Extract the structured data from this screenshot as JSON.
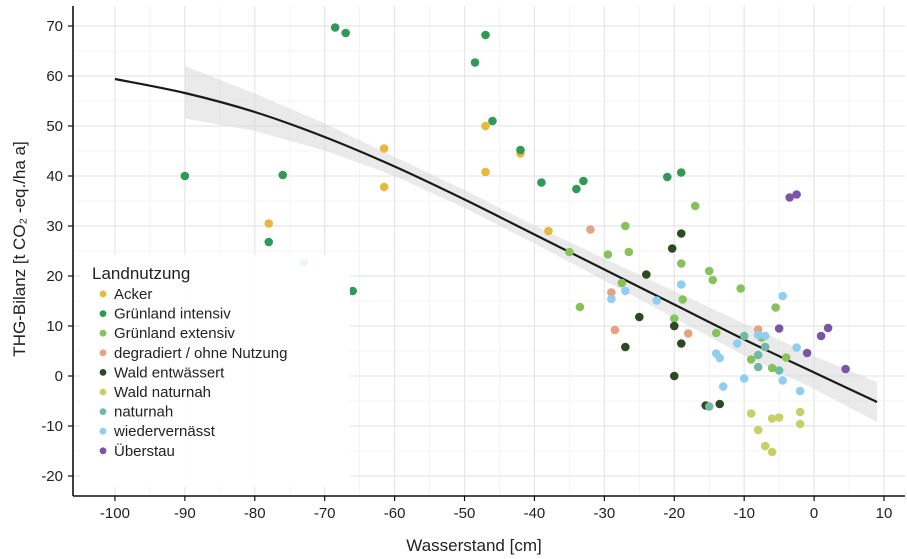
{
  "chart_data": {
    "type": "scatter",
    "xlabel": "Wasserstand [cm]",
    "ylabel": "THG-Bilanz [t CO₂ -eq./ha a]",
    "xlim": [
      -106,
      13
    ],
    "ylim": [
      -24,
      74
    ],
    "xticks": [
      -100,
      -90,
      -80,
      -70,
      -60,
      -50,
      -40,
      -30,
      -20,
      -10,
      0,
      10
    ],
    "yticks": [
      -20,
      -10,
      0,
      10,
      20,
      30,
      40,
      50,
      60,
      70
    ],
    "grid": true,
    "legend": {
      "title": "Landnutzung",
      "position": "bottom-left"
    },
    "series": [
      {
        "name": "Acker",
        "color": "#e8b83a",
        "points": [
          [
            -78,
            30.5
          ],
          [
            -61.5,
            45.5
          ],
          [
            -61.5,
            37.8
          ],
          [
            -47,
            50
          ],
          [
            -47,
            40.8
          ],
          [
            -42,
            44.5
          ],
          [
            -38,
            29
          ]
        ]
      },
      {
        "name": "Grünland intensiv",
        "color": "#2e9a56",
        "points": [
          [
            -90,
            40
          ],
          [
            -78,
            26.8
          ],
          [
            -76,
            40.2
          ],
          [
            -73,
            22.7
          ],
          [
            -68.5,
            69.7
          ],
          [
            -67,
            68.6
          ],
          [
            -66,
            17
          ],
          [
            -48.5,
            62.7
          ],
          [
            -47,
            68.2
          ],
          [
            -46,
            51
          ],
          [
            -42,
            45.2
          ],
          [
            -39,
            38.7
          ],
          [
            -34,
            37.4
          ],
          [
            -33,
            39
          ],
          [
            -21,
            39.8
          ],
          [
            -19,
            40.7
          ]
        ]
      },
      {
        "name": "Grünland extensiv",
        "color": "#86c25a",
        "points": [
          [
            -35,
            24.8
          ],
          [
            -33.5,
            13.8
          ],
          [
            -29.5,
            24.3
          ],
          [
            -27.5,
            18.6
          ],
          [
            -27,
            30
          ],
          [
            -26.5,
            24.8
          ],
          [
            -20,
            11.5
          ],
          [
            -20,
            10
          ],
          [
            -19,
            22.5
          ],
          [
            -18.8,
            15.3
          ],
          [
            -17,
            34
          ],
          [
            -15,
            21
          ],
          [
            -14.5,
            19.2
          ],
          [
            -14,
            8.6
          ],
          [
            -10.5,
            17.5
          ],
          [
            -9,
            3.3
          ],
          [
            -7.5,
            7.7
          ],
          [
            -6,
            1.6
          ],
          [
            -5.5,
            13.7
          ],
          [
            -4,
            3.7
          ]
        ]
      },
      {
        "name": "degradiert / ohne Nutzung",
        "color": "#e8a283",
        "points": [
          [
            -32,
            29.3
          ],
          [
            -29,
            16.7
          ],
          [
            -28.5,
            9.2
          ],
          [
            -18,
            8.5
          ],
          [
            -8,
            9.3
          ]
        ]
      },
      {
        "name": "Wald entwässert",
        "color": "#2b4a22",
        "points": [
          [
            -27,
            5.8
          ],
          [
            -25,
            11.8
          ],
          [
            -24,
            20.3
          ],
          [
            -20.3,
            25.5
          ],
          [
            -20,
            10
          ],
          [
            -20,
            0
          ],
          [
            -19,
            28.5
          ],
          [
            -19,
            6.5
          ],
          [
            -15.5,
            -5.9
          ],
          [
            -13.5,
            -5.6
          ]
        ]
      },
      {
        "name": "Wald naturnah",
        "color": "#c9cf67",
        "points": [
          [
            -9,
            -7.5
          ],
          [
            -8,
            -10.8
          ],
          [
            -7,
            -14
          ],
          [
            -6,
            -15.2
          ],
          [
            -6,
            -8.5
          ],
          [
            -5,
            -8.3
          ],
          [
            -2,
            -7.2
          ],
          [
            -2,
            -9.6
          ]
        ]
      },
      {
        "name": "naturnah",
        "color": "#6fb9a8",
        "points": [
          [
            -15,
            -6.1
          ],
          [
            -10,
            8
          ],
          [
            -8,
            1.8
          ],
          [
            -8,
            4.2
          ],
          [
            -7,
            5.8
          ],
          [
            -5,
            1.1
          ]
        ]
      },
      {
        "name": "wiedervernässt",
        "color": "#8fcef0",
        "points": [
          [
            -29,
            15.4
          ],
          [
            -27,
            17
          ],
          [
            -22.5,
            15.1
          ],
          [
            -19,
            18.3
          ],
          [
            -14,
            4.5
          ],
          [
            -13.5,
            3.6
          ],
          [
            -13,
            -2.1
          ],
          [
            -11,
            6.5
          ],
          [
            -10,
            -0.5
          ],
          [
            -8,
            8.2
          ],
          [
            -7,
            8
          ],
          [
            -4.5,
            16
          ],
          [
            -4.5,
            -0.9
          ],
          [
            -2.5,
            5.7
          ],
          [
            -2,
            -3
          ]
        ]
      },
      {
        "name": "Überstau",
        "color": "#7b55a5",
        "points": [
          [
            -5,
            9.5
          ],
          [
            -3.5,
            35.7
          ],
          [
            -2.5,
            36.3
          ],
          [
            -1,
            4.6
          ],
          [
            1,
            8
          ],
          [
            2,
            9.6
          ],
          [
            4.5,
            1.4
          ]
        ]
      }
    ],
    "fit": {
      "line": [
        [
          -100,
          59.4
        ],
        [
          -90,
          56.6
        ],
        [
          -80,
          52.8
        ],
        [
          -70,
          47.8
        ],
        [
          -60,
          41.9
        ],
        [
          -50,
          35.3
        ],
        [
          -40,
          28.3
        ],
        [
          -30,
          21.3
        ],
        [
          -20,
          14.3
        ],
        [
          -10,
          7.3
        ],
        [
          0,
          0.7
        ],
        [
          9,
          -5.2
        ]
      ],
      "band_upper": [
        [
          -90,
          62
        ],
        [
          -80,
          56.5
        ],
        [
          -70,
          50.5
        ],
        [
          -60,
          43.8
        ],
        [
          -50,
          37.2
        ],
        [
          -40,
          30.1
        ],
        [
          -30,
          23.5
        ],
        [
          -20,
          17
        ],
        [
          -10,
          10.5
        ],
        [
          0,
          4
        ],
        [
          9,
          -1.2
        ]
      ],
      "band_lower": [
        [
          -90,
          51.5
        ],
        [
          -80,
          49
        ],
        [
          -70,
          45.1
        ],
        [
          -60,
          40
        ],
        [
          -50,
          33.6
        ],
        [
          -40,
          26.5
        ],
        [
          -30,
          19.1
        ],
        [
          -20,
          11.6
        ],
        [
          -10,
          4.1
        ],
        [
          0,
          -2.6
        ],
        [
          9,
          -9.2
        ]
      ]
    }
  }
}
